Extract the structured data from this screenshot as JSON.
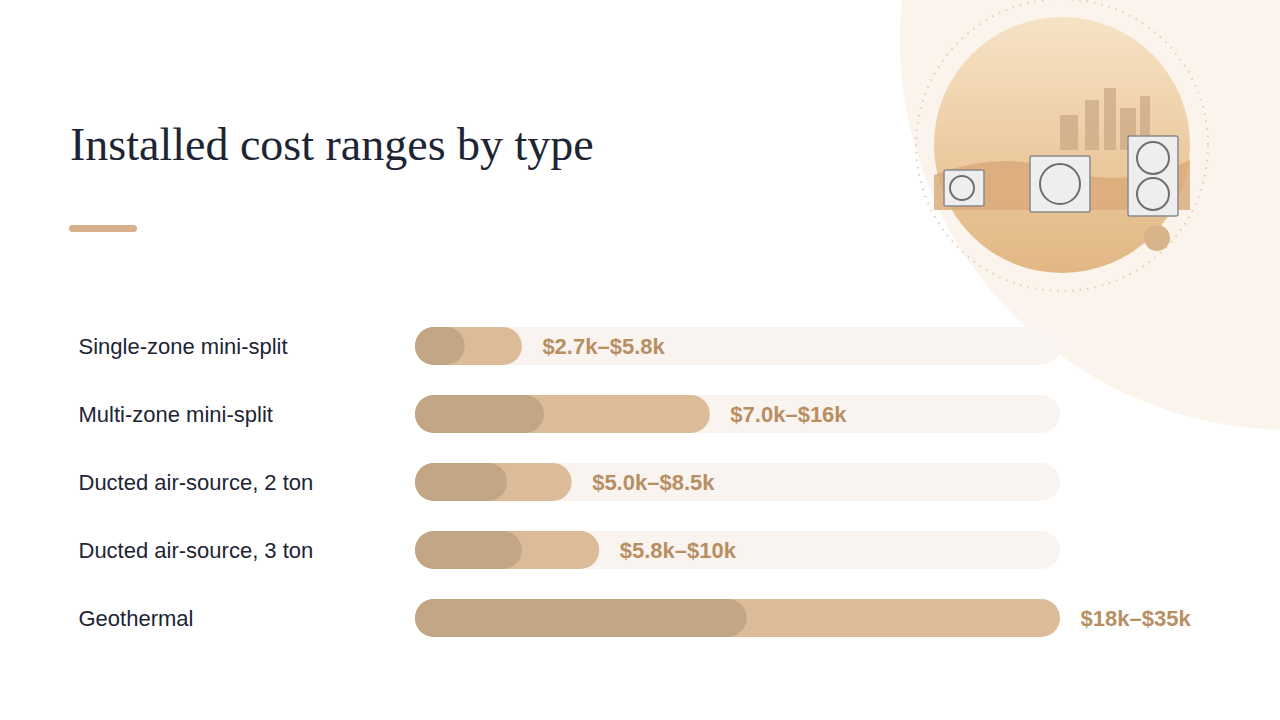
{
  "chart_data": {
    "type": "bar",
    "title": "Installed cost ranges by type",
    "orientation": "horizontal",
    "categories": [
      "Single-zone mini-split",
      "Multi-zone mini-split",
      "Ducted air-source, 2 ton",
      "Ducted air-source, 3 ton",
      "Geothermal"
    ],
    "values": [
      5.8,
      16,
      8.5,
      10,
      35
    ],
    "low": [
      2.7,
      7.0,
      5.0,
      5.8,
      18
    ],
    "value_labels": [
      "$2.7k–$5.8k",
      "$7.0k–$16k",
      "$5.0k–$8.5k",
      "$5.8k–$10k",
      "$18k–$35k"
    ],
    "xlim": [
      0,
      35
    ],
    "tick_labels": "y",
    "data_labels": true,
    "color": "#dcbc98"
  }
}
